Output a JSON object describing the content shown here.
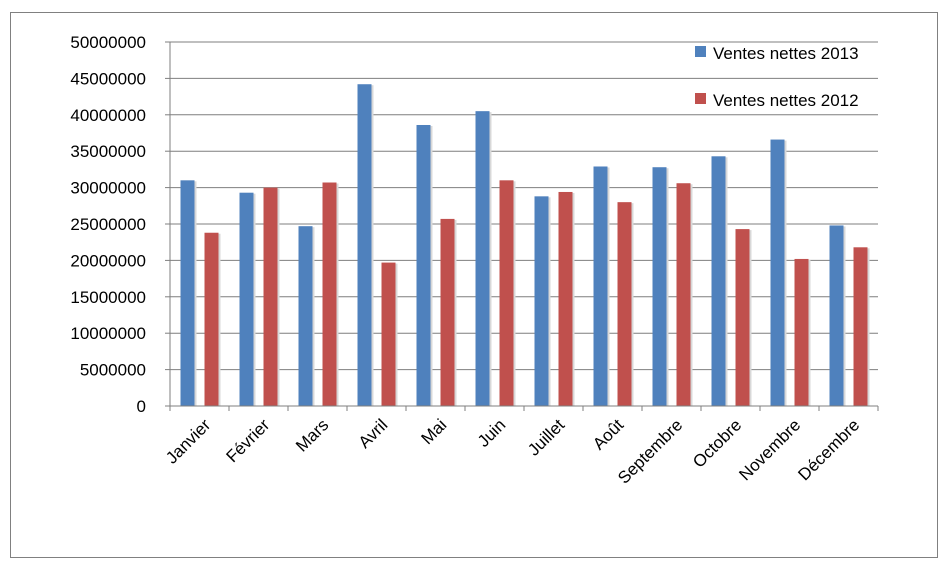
{
  "chart_data": {
    "type": "bar",
    "title": "",
    "xlabel": "",
    "ylabel": "",
    "ylim": [
      0,
      50000000
    ],
    "yticks": [
      0,
      5000000,
      10000000,
      15000000,
      20000000,
      25000000,
      30000000,
      35000000,
      40000000,
      45000000,
      50000000
    ],
    "ytick_labels": [
      "0",
      "5000000",
      "10000000",
      "15000000",
      "20000000",
      "25000000",
      "30000000",
      "35000000",
      "40000000",
      "45000000",
      "50000000"
    ],
    "categories": [
      "Janvier",
      "Février",
      "Mars",
      "Avril",
      "Mai",
      "Juin",
      "Juillet",
      "Août",
      "Septembre",
      "Octobre",
      "Novembre",
      "Décembre"
    ],
    "series": [
      {
        "name": "Ventes nettes 2013",
        "color": "#4F81BD",
        "values": [
          31000000,
          29300000,
          24700000,
          44200000,
          38600000,
          40500000,
          28800000,
          32900000,
          32800000,
          34300000,
          36600000,
          24800000
        ]
      },
      {
        "name": "Ventes nettes 2012",
        "color": "#C0504D",
        "values": [
          23800000,
          30000000,
          30700000,
          19700000,
          25700000,
          31000000,
          29400000,
          28000000,
          30600000,
          24300000,
          20200000,
          21800000
        ]
      }
    ],
    "grid": true,
    "legend": "top-right"
  }
}
